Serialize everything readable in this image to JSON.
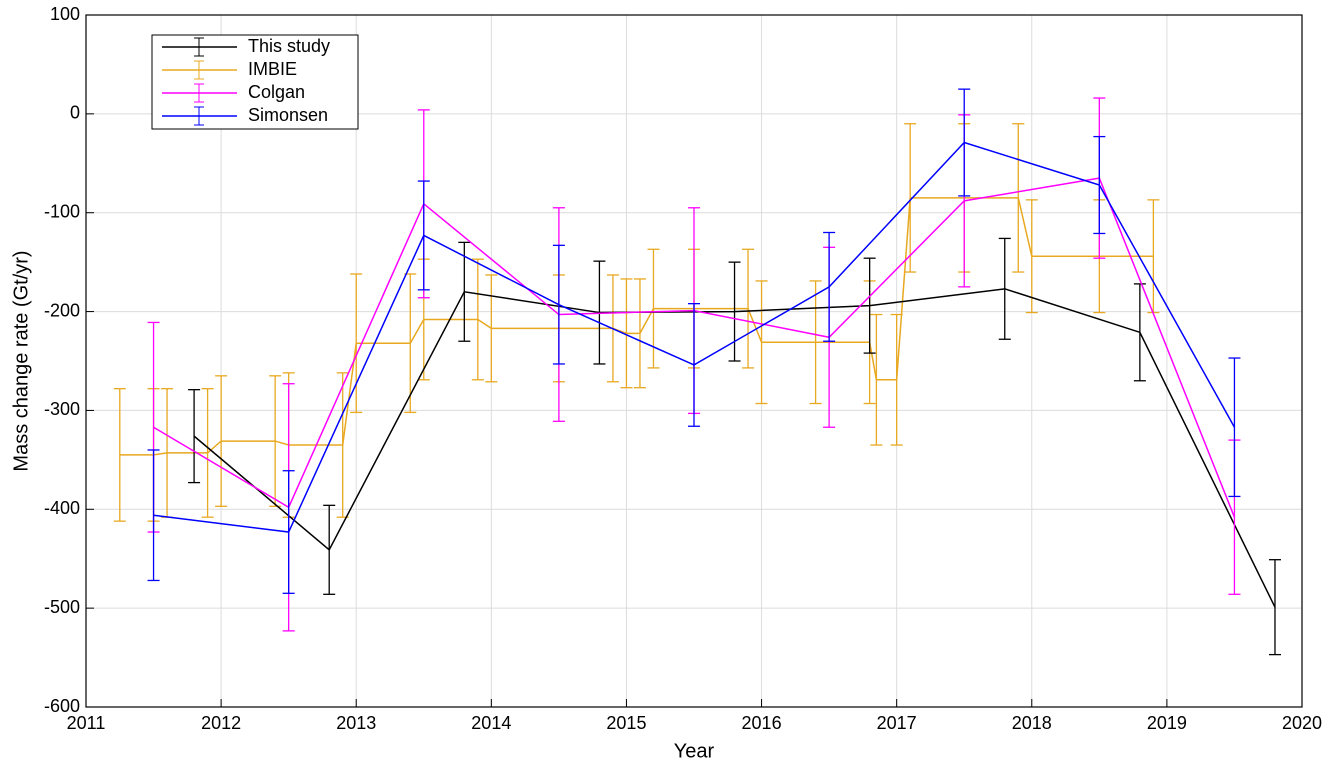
{
  "chart_data": {
    "type": "line",
    "xlabel": "Year",
    "ylabel": "Mass change rate (Gt/yr)",
    "xlim": [
      2011,
      2020
    ],
    "xticks": [
      2011,
      2012,
      2013,
      2014,
      2015,
      2016,
      2017,
      2018,
      2019,
      2020
    ],
    "ylim": [
      -600,
      100
    ],
    "yticks": [
      -600,
      -500,
      -400,
      -300,
      -200,
      -100,
      0,
      100
    ],
    "grid": true,
    "legend": "upper left",
    "series": [
      {
        "name": "This study",
        "color": "#000000",
        "x": [
          2011.8,
          2012.8,
          2013.8,
          2014.8,
          2015.8,
          2016.8,
          2017.8,
          2018.8,
          2019.8
        ],
        "values": [
          -326,
          -441,
          -180,
          -201,
          -200,
          -194,
          -177,
          -221,
          -499
        ],
        "errors": [
          47,
          45,
          50,
          52,
          50,
          48,
          51,
          49,
          48
        ]
      },
      {
        "name": "IMBIE",
        "color": "#e8a820",
        "x": [
          2011.25,
          2011.5,
          2011.6,
          2011.9,
          2012.0,
          2012.4,
          2012.5,
          2012.9,
          2013.0,
          2013.4,
          2013.5,
          2013.9,
          2014.0,
          2014.5,
          2014.9,
          2015.0,
          2015.1,
          2015.2,
          2015.5,
          2015.9,
          2016.0,
          2016.4,
          2016.8,
          2016.85,
          2017.0,
          2017.1,
          2017.5,
          2017.9,
          2018.0,
          2018.5,
          2018.9
        ],
        "values": [
          -345,
          -345,
          -343,
          -343,
          -331,
          -331,
          -335,
          -335,
          -232,
          -232,
          -208,
          -208,
          -217,
          -217,
          -217,
          -222,
          -222,
          -197,
          -197,
          -197,
          -231,
          -231,
          -231,
          -269,
          -269,
          -85,
          -85,
          -85,
          -144,
          -144,
          -144
        ],
        "errors": [
          67,
          67,
          65,
          65,
          66,
          66,
          73,
          73,
          70,
          70,
          61,
          61,
          54,
          54,
          54,
          55,
          55,
          60,
          60,
          60,
          62,
          62,
          62,
          66,
          66,
          75,
          75,
          75,
          57,
          57,
          57
        ]
      },
      {
        "name": "Colgan",
        "color": "#ff00ff",
        "x": [
          2011.5,
          2012.5,
          2013.5,
          2014.5,
          2015.5,
          2016.5,
          2017.5,
          2018.5,
          2019.5
        ],
        "values": [
          -317,
          -398,
          -91,
          -203,
          -199,
          -226,
          -88,
          -65,
          -408
        ],
        "errors": [
          106,
          125,
          95,
          108,
          104,
          91,
          87,
          81,
          78
        ]
      },
      {
        "name": "Simonsen",
        "color": "#0000ff",
        "x": [
          2011.5,
          2012.5,
          2013.5,
          2014.5,
          2015.5,
          2016.5,
          2017.5,
          2018.5,
          2019.5
        ],
        "values": [
          -406,
          -423,
          -123,
          -193,
          -254,
          -175,
          -29,
          -72,
          -317
        ],
        "errors": [
          66,
          62,
          55,
          60,
          62,
          55,
          54,
          49,
          70
        ]
      }
    ]
  }
}
